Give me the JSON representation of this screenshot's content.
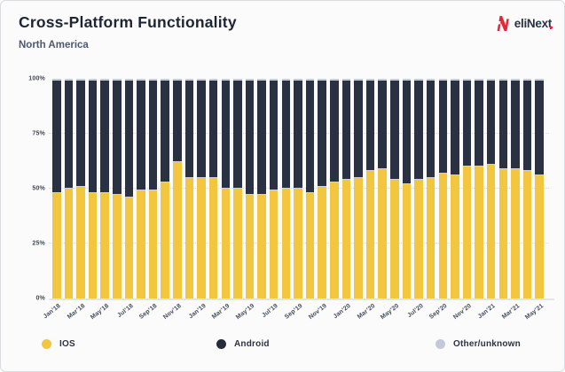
{
  "header": {
    "title": "Cross-Platform Functionality",
    "subtitle": "North America"
  },
  "logo": {
    "brand_prefix": "eli",
    "brand_n": "N",
    "brand_suffix": "ext",
    "accent_color": "#e32638",
    "text_color": "#2a3142",
    "icon": "elinext-n-mark-icon"
  },
  "chart_data": {
    "type": "bar",
    "stacked": true,
    "percent": true,
    "title": "Cross-Platform Functionality",
    "subtitle": "North America",
    "ylim": [
      0,
      100
    ],
    "y_tick_labels": [
      "0%",
      "25%",
      "50%",
      "75%",
      "100%"
    ],
    "y_tick_values": [
      0,
      25,
      50,
      75,
      100
    ],
    "grid": "horizontal dotted at 25/50/75, solid baseline at 0",
    "legend_position": "bottom",
    "categories": [
      "Jan’18",
      "Feb’18",
      "Mar’18",
      "Apr’18",
      "May’18",
      "Jun’18",
      "Jul’18",
      "Aug’18",
      "Sep’18",
      "Oct’18",
      "Nov’18",
      "Dec’18",
      "Jan’19",
      "Feb’19",
      "Mar’19",
      "Apr’19",
      "May’19",
      "Jun’19",
      "Jul’19",
      "Aug’19",
      "Sep’19",
      "Oct’19",
      "Nov’19",
      "Dec’19",
      "Jan’20",
      "Feb’20",
      "Mar’20",
      "Apr’20",
      "May’20",
      "Jun’20",
      "Jul’20",
      "Aug’20",
      "Sep’20",
      "Oct’20",
      "Nov’20",
      "Dec’20",
      "Jan’21",
      "Feb’21",
      "Mar’21",
      "Apr’21",
      "May’21"
    ],
    "x_tick_labels": [
      "Jan’18",
      "Mar’18",
      "May’18",
      "Jul’18",
      "Sep’18",
      "Nov’18",
      "Jan’19",
      "Mar’19",
      "May’19",
      "Jul’19",
      "Sep’19",
      "Nov’19",
      "Jan’20",
      "Mar’20",
      "May’20",
      "Jul’20",
      "Sep’20",
      "Nov’20",
      "Jan’21",
      "Mar’21",
      "May’21"
    ],
    "x_tick_every": 2,
    "series": [
      {
        "name": "IOS",
        "color": "#f2c63f",
        "values": [
          48,
          50,
          51,
          48,
          48,
          47,
          46,
          49,
          49,
          53,
          62,
          55,
          55,
          55,
          50,
          50,
          47,
          47,
          49,
          50,
          50,
          48,
          51,
          53,
          54,
          55,
          58,
          59,
          54,
          52,
          54,
          55,
          57,
          56,
          60,
          60,
          61,
          59,
          59,
          58,
          56
        ]
      },
      {
        "name": "Android",
        "color": "#2a3142",
        "values": [
          51,
          49,
          48,
          51,
          51,
          52,
          53,
          50,
          50,
          46,
          37,
          44,
          44,
          44,
          49,
          49,
          52,
          52,
          50,
          49,
          49,
          51,
          48,
          46,
          45,
          44,
          41,
          40,
          45,
          47,
          45,
          44,
          42,
          43,
          39,
          39,
          38,
          40,
          40,
          41,
          43
        ]
      },
      {
        "name": "Other/unknown",
        "color": "#c6cbd9",
        "values": [
          1,
          1,
          1,
          1,
          1,
          1,
          1,
          1,
          1,
          1,
          1,
          1,
          1,
          1,
          1,
          1,
          1,
          1,
          1,
          1,
          1,
          1,
          1,
          1,
          1,
          1,
          1,
          1,
          1,
          1,
          1,
          1,
          1,
          1,
          1,
          1,
          1,
          1,
          1,
          1,
          1
        ]
      }
    ]
  },
  "legend": {
    "items": [
      {
        "label": "IOS",
        "color": "#f2c63f"
      },
      {
        "label": "Android",
        "color": "#252d3d"
      },
      {
        "label": "Other/unknown",
        "color": "#c3c9d9"
      }
    ]
  }
}
